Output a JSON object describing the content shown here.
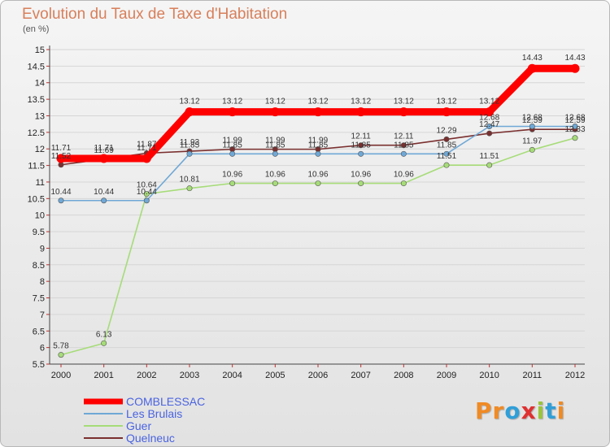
{
  "header": {
    "title": "Evolution du Taux de Taxe d'Habitation",
    "unit": "(en %)"
  },
  "logo": {
    "text": "Proxiti",
    "colors": [
      "#f08a24",
      "#f08a24",
      "#2f9fd8",
      "#e03030",
      "#9ac43c",
      "#2f9fd8",
      "#f08a24"
    ]
  },
  "chart_data": {
    "type": "line",
    "title": "Evolution du Taux de Taxe d'Habitation",
    "ylabel": "(en %)",
    "xlabel": "",
    "x": [
      2000,
      2001,
      2002,
      2003,
      2004,
      2005,
      2006,
      2007,
      2008,
      2009,
      2010,
      2011,
      2012
    ],
    "ylim": [
      5.5,
      15
    ],
    "yticks": [
      "5.5",
      "6",
      "6.5",
      "7",
      "7.5",
      "8",
      "8.5",
      "9",
      "9.5",
      "10",
      "10.5",
      "11",
      "11.5",
      "12",
      "12.5",
      "13",
      "13.5",
      "14",
      "14.5",
      "15"
    ],
    "grid": "horizontal",
    "legend_position": "bottom-left",
    "series": [
      {
        "name": "COMBLESSAC",
        "color": "#ff0000",
        "values": [
          11.71,
          11.71,
          11.71,
          13.12,
          13.12,
          13.12,
          13.12,
          13.12,
          13.12,
          13.12,
          13.12,
          14.43,
          14.43
        ],
        "labels": [
          "11.71",
          "11.71",
          "11.71",
          "13.12",
          "13.12",
          "13.12",
          "13.12",
          "13.12",
          "13.12",
          "13.12",
          "13.12",
          "14.43",
          "14.43"
        ]
      },
      {
        "name": "Les Brulais",
        "color": "#6fa8d6",
        "values": [
          10.44,
          10.44,
          10.44,
          11.85,
          11.85,
          11.85,
          11.85,
          11.85,
          11.85,
          11.85,
          12.68,
          12.68,
          12.68
        ],
        "labels": [
          "10.44",
          "10.44",
          "10.44",
          "11.85",
          "11.85",
          "11.85",
          "11.85",
          "11.85",
          "11.85",
          "11.85",
          "12.68",
          "12.68",
          "12.68"
        ]
      },
      {
        "name": "Guer",
        "color": "#a6dc78",
        "values": [
          5.78,
          6.13,
          10.64,
          10.81,
          10.96,
          10.96,
          10.96,
          10.96,
          10.96,
          11.51,
          11.51,
          11.97,
          12.33
        ],
        "labels": [
          "5.78",
          "6.13",
          "10.64",
          "10.81",
          "10.96",
          "10.96",
          "10.96",
          "10.96",
          "10.96",
          "11.51",
          "11.51",
          "11.97",
          "12.33"
        ]
      },
      {
        "name": "Quelneuc",
        "color": "#7a2f2f",
        "values": [
          11.52,
          11.69,
          11.87,
          11.93,
          11.99,
          11.99,
          11.99,
          12.11,
          12.11,
          12.29,
          12.47,
          12.59,
          12.59
        ],
        "labels": [
          "11.52",
          "11.69",
          "11.87",
          "11.93",
          "11.99",
          "11.99",
          "11.99",
          "12.11",
          "12.11",
          "12.29",
          "12.47",
          "12.59",
          "12.59"
        ]
      }
    ]
  }
}
